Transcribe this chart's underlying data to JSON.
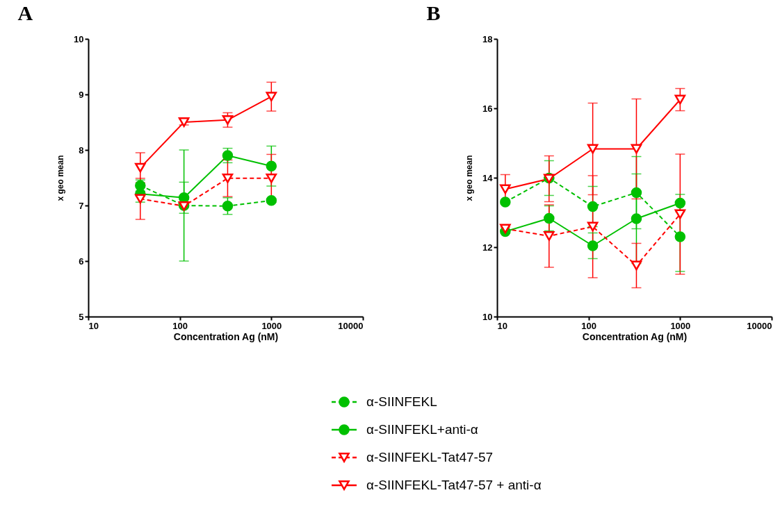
{
  "chart_data": [
    {
      "type": "line",
      "title": "A",
      "xlabel": "Concentration Ag (nM)",
      "ylabel": "x geo mean",
      "log": "x",
      "xlim": [
        10,
        10000
      ],
      "xticks": [
        10,
        100,
        1000,
        10000
      ],
      "ylim": [
        5,
        10
      ],
      "yticks": [
        5,
        6,
        7,
        8,
        9,
        10
      ],
      "grid": false,
      "legend": "bottom",
      "series": [
        {
          "name": "α-SIINFEKL",
          "color": "#00c000",
          "marker": "circle",
          "line_style": "dashed",
          "x": [
            37,
            111,
            333,
            1000
          ],
          "values": [
            7.36,
            7.0,
            6.99,
            7.09
          ],
          "errors": [
            0.1,
            1.0,
            0.15,
            0.03
          ]
        },
        {
          "name": "α-SIINFEKL+anti-α",
          "color": "#00c000",
          "marker": "circle",
          "line_style": "solid",
          "x": [
            37,
            111,
            333,
            1000
          ],
          "values": [
            7.21,
            7.14,
            7.9,
            7.71
          ],
          "errors": [
            0.15,
            0.28,
            0.13,
            0.36
          ]
        },
        {
          "name": "α-SIINFEKL-Tat47-57",
          "color": "#ff0000",
          "marker": "triangle",
          "line_style": "dashed",
          "x": [
            37,
            111,
            333,
            1000
          ],
          "values": [
            7.12,
            6.99,
            7.49,
            7.49
          ],
          "errors": [
            0.37,
            0.02,
            0.33,
            0.43
          ]
        },
        {
          "name": "α-SIINFEKL-Tat47-57 + anti-α",
          "color": "#ff0000",
          "marker": "triangle",
          "line_style": "solid",
          "x": [
            37,
            111,
            333,
            1000
          ],
          "values": [
            7.68,
            8.5,
            8.54,
            8.96
          ],
          "errors": [
            0.27,
            0.05,
            0.13,
            0.26
          ]
        }
      ]
    },
    {
      "type": "line",
      "title": "B",
      "xlabel": "Concentration Ag (nM)",
      "ylabel": "x geo mean",
      "log": "x",
      "xlim": [
        10,
        10000
      ],
      "xticks": [
        10,
        100,
        1000,
        10000
      ],
      "ylim": [
        10,
        18
      ],
      "yticks": [
        10,
        12,
        14,
        16,
        18
      ],
      "grid": false,
      "legend": "bottom",
      "series": [
        {
          "name": "α-SIINFEKL",
          "color": "#00c000",
          "marker": "circle",
          "line_style": "dashed",
          "x": [
            12.3,
            37,
            111,
            333,
            1000
          ],
          "values": [
            13.3,
            13.99,
            13.17,
            13.57,
            12.3
          ],
          "errors": [
            0.05,
            0.5,
            0.58,
            1.04,
            1.0
          ]
        },
        {
          "name": "α-SIINFEKL+anti-α",
          "color": "#00c000",
          "marker": "circle",
          "line_style": "solid",
          "x": [
            12.3,
            37,
            111,
            333,
            1000
          ],
          "values": [
            12.45,
            12.83,
            12.04,
            12.82,
            13.27
          ],
          "errors": [
            0.05,
            0.36,
            0.37,
            1.29,
            0.25
          ]
        },
        {
          "name": "α-SIINFEKL-Tat47-57",
          "color": "#ff0000",
          "marker": "triangle",
          "line_style": "dashed",
          "x": [
            12.3,
            37,
            111,
            333,
            1000
          ],
          "values": [
            12.53,
            12.32,
            12.59,
            11.47,
            12.95
          ],
          "errors": [
            0.05,
            0.9,
            1.47,
            0.64,
            1.73
          ]
        },
        {
          "name": "α-SIINFEKL-Tat47-57 + anti-α",
          "color": "#ff0000",
          "marker": "triangle",
          "line_style": "solid",
          "x": [
            12.3,
            37,
            111,
            333,
            1000
          ],
          "values": [
            13.67,
            13.97,
            14.83,
            14.83,
            16.25
          ],
          "errors": [
            0.42,
            0.66,
            1.32,
            1.44,
            0.32
          ]
        }
      ]
    }
  ]
}
